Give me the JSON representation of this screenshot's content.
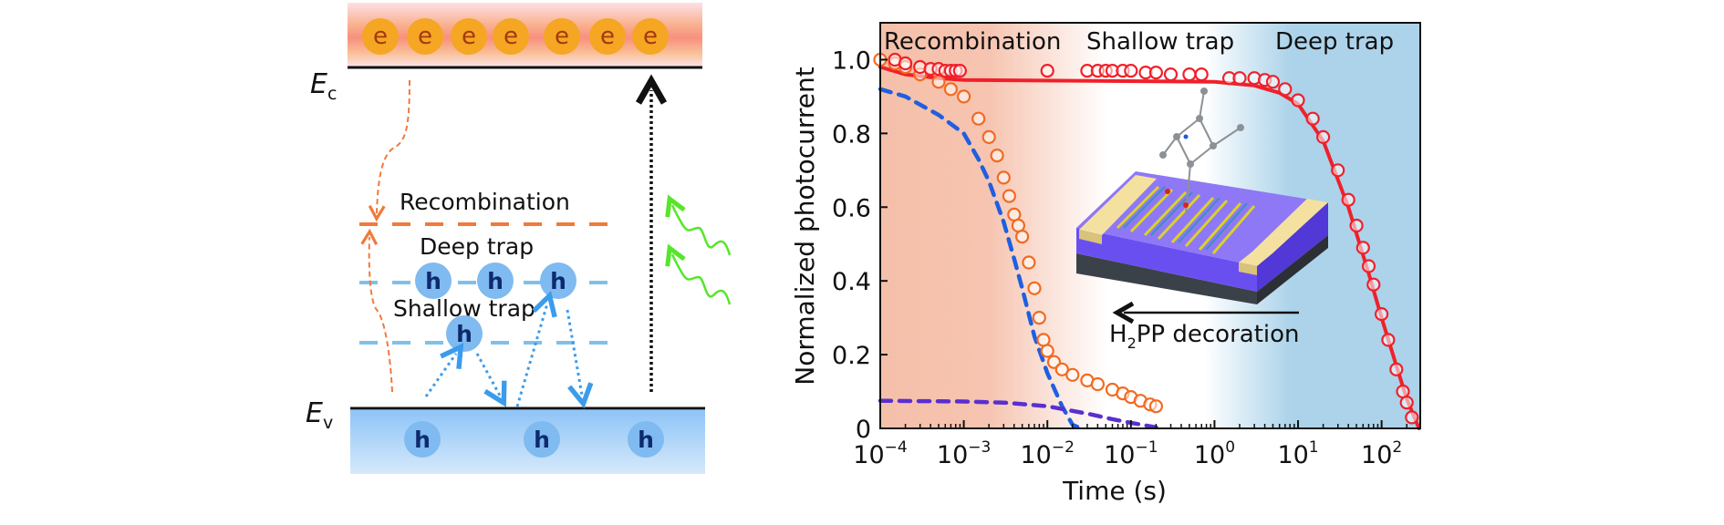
{
  "diagram": {
    "ec_label": {
      "main": "E",
      "sub": "c"
    },
    "ev_label": {
      "main": "E",
      "sub": "v"
    },
    "electron_label": "e",
    "hole_label": "h",
    "levels": {
      "recombination": "Recombination",
      "deep_trap": "Deep trap",
      "shallow_trap": "Shallow trap"
    },
    "colors": {
      "conduction_band": "#f8a07f",
      "electron": "#f5a623",
      "valence_band": "#9ccaf5",
      "hole": "#7fbaf0",
      "recombination_level": "#f07a3c",
      "trap_level": "#7fc0ea",
      "light": "#55e62a"
    }
  },
  "chart_data": {
    "type": "scatter",
    "xlabel": "Time (s)",
    "ylabel": "Normalized photocurrent",
    "xscale": "log",
    "xlim": [
      0.0001,
      290
    ],
    "ylim": [
      0,
      1.1
    ],
    "grid": false,
    "xticks": [
      0.0001,
      0.001,
      0.01,
      0.1,
      1,
      10,
      100
    ],
    "xtick_labels": [
      {
        "base": "10",
        "exp": "−4"
      },
      {
        "base": "10",
        "exp": "−3"
      },
      {
        "base": "10",
        "exp": "−2"
      },
      {
        "base": "10",
        "exp": "−1"
      },
      {
        "base": "10",
        "exp": "0"
      },
      {
        "base": "10",
        "exp": "1"
      },
      {
        "base": "10",
        "exp": "2"
      }
    ],
    "yticks": [
      0,
      0.2,
      0.4,
      0.6,
      0.8,
      1.0
    ],
    "ytick_labels": [
      "0",
      "0.2",
      "0.4",
      "0.6",
      "0.8",
      "1.0"
    ],
    "region_labels": {
      "recombination": "Recombination",
      "shallow_trap": "Shallow trap",
      "deep_trap": "Deep trap"
    },
    "region_colors": {
      "recombination": "#f5c0aa",
      "deep_trap": "#acd3ea"
    },
    "annotation": {
      "h": "H",
      "sub": "2",
      "rest": "PP decoration"
    },
    "series": [
      {
        "kind": "markers",
        "color": "#f26a21",
        "points": [
          [
            0.0001,
            1.0
          ],
          [
            0.00015,
            0.99
          ],
          [
            0.0002,
            0.98
          ],
          [
            0.0003,
            0.96
          ],
          [
            0.0005,
            0.94
          ],
          [
            0.0007,
            0.92
          ],
          [
            0.001,
            0.9
          ],
          [
            0.0015,
            0.84
          ],
          [
            0.002,
            0.79
          ],
          [
            0.0025,
            0.74
          ],
          [
            0.003,
            0.68
          ],
          [
            0.0035,
            0.63
          ],
          [
            0.004,
            0.58
          ],
          [
            0.0045,
            0.55
          ],
          [
            0.005,
            0.52
          ],
          [
            0.006,
            0.45
          ],
          [
            0.007,
            0.38
          ],
          [
            0.008,
            0.3
          ],
          [
            0.009,
            0.24
          ],
          [
            0.01,
            0.21
          ],
          [
            0.012,
            0.18
          ],
          [
            0.015,
            0.16
          ],
          [
            0.02,
            0.145
          ],
          [
            0.03,
            0.13
          ],
          [
            0.04,
            0.12
          ],
          [
            0.06,
            0.105
          ],
          [
            0.08,
            0.095
          ],
          [
            0.1,
            0.085
          ],
          [
            0.13,
            0.075
          ],
          [
            0.17,
            0.065
          ],
          [
            0.2,
            0.06
          ]
        ]
      },
      {
        "kind": "markers",
        "color": "#f0202a",
        "points": [
          [
            0.00015,
            1.0
          ],
          [
            0.0002,
            0.99
          ],
          [
            0.0003,
            0.98
          ],
          [
            0.0004,
            0.975
          ],
          [
            0.0005,
            0.975
          ],
          [
            0.0006,
            0.97
          ],
          [
            0.0007,
            0.97
          ],
          [
            0.0008,
            0.97
          ],
          [
            0.0009,
            0.97
          ],
          [
            0.01,
            0.97
          ],
          [
            0.03,
            0.97
          ],
          [
            0.04,
            0.97
          ],
          [
            0.05,
            0.97
          ],
          [
            0.06,
            0.97
          ],
          [
            0.08,
            0.97
          ],
          [
            0.1,
            0.97
          ],
          [
            0.15,
            0.965
          ],
          [
            0.2,
            0.965
          ],
          [
            0.3,
            0.96
          ],
          [
            0.5,
            0.96
          ],
          [
            0.7,
            0.96
          ],
          [
            1.5,
            0.95
          ],
          [
            2,
            0.95
          ],
          [
            3,
            0.95
          ],
          [
            4,
            0.945
          ],
          [
            5,
            0.94
          ],
          [
            7,
            0.92
          ],
          [
            10,
            0.89
          ],
          [
            15,
            0.84
          ],
          [
            20,
            0.79
          ],
          [
            30,
            0.7
          ],
          [
            40,
            0.62
          ],
          [
            50,
            0.55
          ],
          [
            60,
            0.49
          ],
          [
            70,
            0.44
          ],
          [
            80,
            0.39
          ],
          [
            100,
            0.31
          ],
          [
            120,
            0.24
          ],
          [
            150,
            0.16
          ],
          [
            180,
            0.1
          ],
          [
            200,
            0.07
          ],
          [
            230,
            0.03
          ]
        ]
      },
      {
        "kind": "line",
        "color": "#f0202a",
        "points": [
          [
            0.0001,
            0.98
          ],
          [
            0.0002,
            0.96
          ],
          [
            0.0005,
            0.95
          ],
          [
            0.001,
            0.945
          ],
          [
            1,
            0.94
          ],
          [
            3,
            0.93
          ],
          [
            6,
            0.91
          ],
          [
            10,
            0.88
          ],
          [
            20,
            0.78
          ],
          [
            40,
            0.6
          ],
          [
            70,
            0.42
          ],
          [
            100,
            0.3
          ],
          [
            150,
            0.17
          ],
          [
            200,
            0.08
          ],
          [
            280,
            0
          ]
        ]
      },
      {
        "kind": "dashed",
        "color": "#1f5fe0",
        "points": [
          [
            0.0001,
            0.92
          ],
          [
            0.0002,
            0.9
          ],
          [
            0.0005,
            0.85
          ],
          [
            0.001,
            0.8
          ],
          [
            0.0015,
            0.73
          ],
          [
            0.002,
            0.67
          ],
          [
            0.003,
            0.56
          ],
          [
            0.004,
            0.46
          ],
          [
            0.005,
            0.38
          ],
          [
            0.007,
            0.25
          ],
          [
            0.01,
            0.15
          ],
          [
            0.015,
            0.06
          ],
          [
            0.02,
            0.01
          ],
          [
            0.025,
            0
          ]
        ]
      },
      {
        "kind": "dashed",
        "color": "#5a2fd0",
        "points": [
          [
            0.0001,
            0.075
          ],
          [
            0.001,
            0.073
          ],
          [
            0.003,
            0.07
          ],
          [
            0.01,
            0.06
          ],
          [
            0.03,
            0.04
          ],
          [
            0.06,
            0.025
          ],
          [
            0.1,
            0.015
          ],
          [
            0.2,
            0.003
          ]
        ]
      }
    ]
  }
}
